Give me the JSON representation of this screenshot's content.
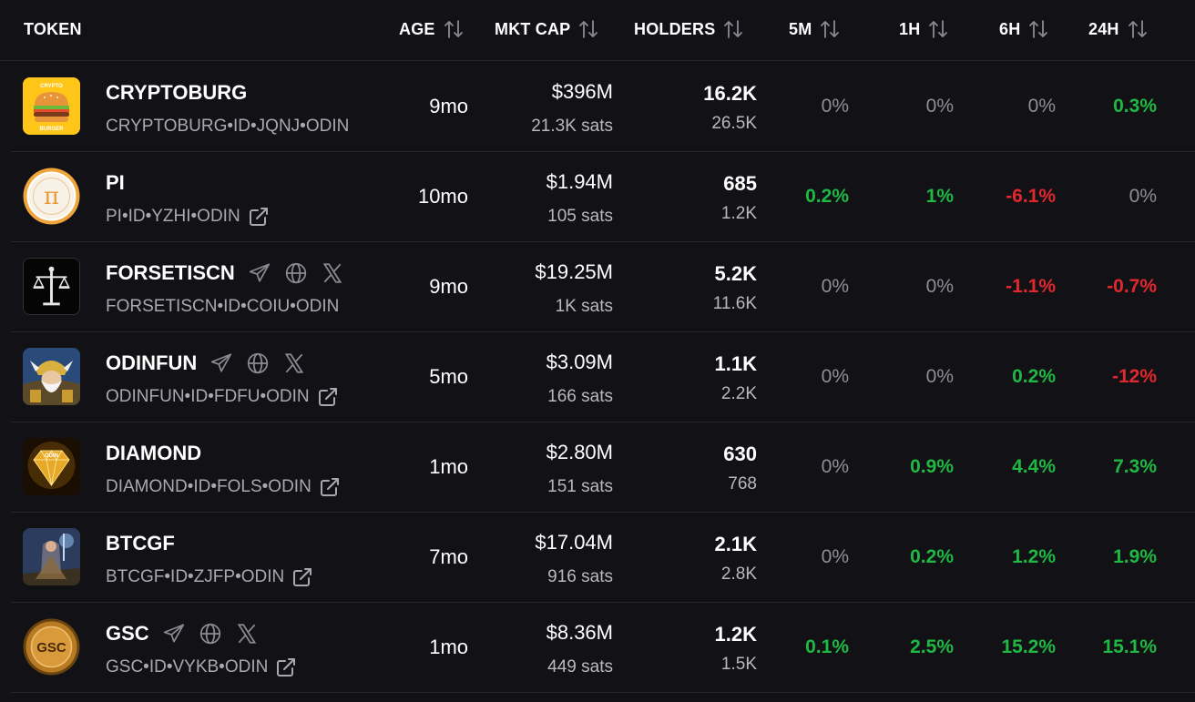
{
  "header": {
    "token": "TOKEN",
    "age": "AGE",
    "mkt_cap": "MKT CAP",
    "holders": "HOLDERS",
    "m5": "5M",
    "h1": "1H",
    "h6": "6H",
    "h24": "24H"
  },
  "colors": {
    "background": "#121216",
    "positive": "#1fb842",
    "negative": "#e0282e",
    "neutral": "#8e8e96",
    "muted": "#a8a8b0"
  },
  "rows": [
    {
      "name": "CRYPTOBURG",
      "ticker": "CRYPTOBURG•ID•JQNJ•ODIN",
      "logo_text_top": "CRYPTO",
      "logo_text_bottom": "BURGER",
      "socials": [],
      "external_link": false,
      "age": "9mo",
      "mkt_cap": "$396M",
      "price_sats": "21.3K sats",
      "holders": "16.2K",
      "holders_secondary": "26.5K",
      "m5": {
        "value": "0%",
        "trend": "neutral"
      },
      "h1": {
        "value": "0%",
        "trend": "neutral"
      },
      "h6": {
        "value": "0%",
        "trend": "neutral"
      },
      "h24": {
        "value": "0.3%",
        "trend": "up"
      }
    },
    {
      "name": "PI",
      "ticker": "PI•ID•YZHI•ODIN",
      "logo_text": "π",
      "socials": [],
      "external_link": true,
      "age": "10mo",
      "mkt_cap": "$1.94M",
      "price_sats": "105 sats",
      "holders": "685",
      "holders_secondary": "1.2K",
      "m5": {
        "value": "0.2%",
        "trend": "up"
      },
      "h1": {
        "value": "1%",
        "trend": "up"
      },
      "h6": {
        "value": "-6.1%",
        "trend": "down"
      },
      "h24": {
        "value": "0%",
        "trend": "neutral"
      }
    },
    {
      "name": "FORSETISCN",
      "ticker": "FORSETISCN•ID•COIU•ODIN",
      "socials": [
        "telegram-icon",
        "globe-icon",
        "x-icon"
      ],
      "external_link": false,
      "age": "9mo",
      "mkt_cap": "$19.25M",
      "price_sats": "1K sats",
      "holders": "5.2K",
      "holders_secondary": "11.6K",
      "m5": {
        "value": "0%",
        "trend": "neutral"
      },
      "h1": {
        "value": "0%",
        "trend": "neutral"
      },
      "h6": {
        "value": "-1.1%",
        "trend": "down"
      },
      "h24": {
        "value": "-0.7%",
        "trend": "down"
      }
    },
    {
      "name": "ODINFUN",
      "ticker": "ODINFUN•ID•FDFU•ODIN",
      "socials": [
        "telegram-icon",
        "globe-icon",
        "x-icon"
      ],
      "external_link": true,
      "age": "5mo",
      "mkt_cap": "$3.09M",
      "price_sats": "166 sats",
      "holders": "1.1K",
      "holders_secondary": "2.2K",
      "m5": {
        "value": "0%",
        "trend": "neutral"
      },
      "h1": {
        "value": "0%",
        "trend": "neutral"
      },
      "h6": {
        "value": "0.2%",
        "trend": "up"
      },
      "h24": {
        "value": "-12%",
        "trend": "down"
      }
    },
    {
      "name": "DIAMOND",
      "ticker": "DIAMOND•ID•FOLS•ODIN",
      "logo_text": "ODIN",
      "socials": [],
      "external_link": true,
      "age": "1mo",
      "mkt_cap": "$2.80M",
      "price_sats": "151 sats",
      "holders": "630",
      "holders_secondary": "768",
      "m5": {
        "value": "0%",
        "trend": "neutral"
      },
      "h1": {
        "value": "0.9%",
        "trend": "up"
      },
      "h6": {
        "value": "4.4%",
        "trend": "up"
      },
      "h24": {
        "value": "7.3%",
        "trend": "up"
      }
    },
    {
      "name": "BTCGF",
      "ticker": "BTCGF•ID•ZJFP•ODIN",
      "socials": [],
      "external_link": true,
      "age": "7mo",
      "mkt_cap": "$17.04M",
      "price_sats": "916 sats",
      "holders": "2.1K",
      "holders_secondary": "2.8K",
      "m5": {
        "value": "0%",
        "trend": "neutral"
      },
      "h1": {
        "value": "0.2%",
        "trend": "up"
      },
      "h6": {
        "value": "1.2%",
        "trend": "up"
      },
      "h24": {
        "value": "1.9%",
        "trend": "up"
      }
    },
    {
      "name": "GSC",
      "ticker": "GSC•ID•VYKB•ODIN",
      "logo_text": "GSC",
      "socials": [
        "telegram-icon",
        "globe-icon",
        "x-icon"
      ],
      "external_link": true,
      "age": "1mo",
      "mkt_cap": "$8.36M",
      "price_sats": "449 sats",
      "holders": "1.2K",
      "holders_secondary": "1.5K",
      "m5": {
        "value": "0.1%",
        "trend": "up"
      },
      "h1": {
        "value": "2.5%",
        "trend": "up"
      },
      "h6": {
        "value": "15.2%",
        "trend": "up"
      },
      "h24": {
        "value": "15.1%",
        "trend": "up"
      }
    }
  ]
}
